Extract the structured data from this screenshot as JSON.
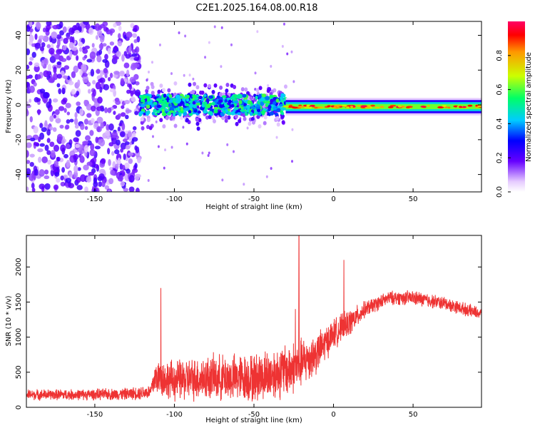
{
  "title": "C2E1.2025.164.08.00.R18",
  "chart_data": [
    {
      "type": "heatmap",
      "xlabel": "Height of straight line (km)",
      "ylabel": "Frequency (Hz)",
      "xlim": [
        -193,
        93
      ],
      "ylim": [
        -50,
        48
      ],
      "xticks": [
        -150,
        -100,
        -50,
        0,
        50
      ],
      "yticks": [
        -40,
        -20,
        0,
        20,
        40
      ],
      "colorbar": {
        "label": "Normalized spectral amplitude",
        "range": [
          0,
          1
        ],
        "ticks": [
          0.0,
          0.2,
          0.4,
          0.6,
          0.8
        ],
        "tick_labels": [
          "0.0",
          "0.2",
          "0.4",
          "0.6",
          "0.8"
        ]
      },
      "regions": [
        {
          "name": "broadband noise",
          "x": [
            -193,
            -122
          ],
          "freq_range": [
            -50,
            48
          ],
          "amplitude": 0.2
        },
        {
          "name": "scattered",
          "x": [
            -122,
            -30
          ],
          "freq_center": 0,
          "freq_halfwidth": 10,
          "amplitude": 0.35
        },
        {
          "name": "narrow line",
          "x": [
            -30,
            93
          ],
          "freq_center": -1,
          "freq_halfwidth": 3,
          "amplitude": 0.9
        }
      ]
    },
    {
      "type": "line",
      "xlabel": "Height of straight line (km)",
      "ylabel": "SNR (10 * v/v)",
      "xlim": [
        -193,
        93
      ],
      "ylim": [
        0,
        2450
      ],
      "xticks": [
        -150,
        -100,
        -50,
        0,
        50
      ],
      "yticks": [
        0,
        500,
        1000,
        1500,
        2000
      ],
      "series_color": "#ee3333",
      "envelope": {
        "x": [
          -193,
          -160,
          -130,
          -115,
          -112,
          -100,
          -80,
          -50,
          -30,
          -22,
          -10,
          0,
          10,
          20,
          35,
          50,
          70,
          93
        ],
        "mean": [
          180,
          180,
          190,
          220,
          430,
          380,
          420,
          420,
          520,
          600,
          780,
          1050,
          1200,
          1400,
          1560,
          1560,
          1480,
          1330
        ],
        "spread": [
          80,
          80,
          90,
          110,
          260,
          300,
          330,
          360,
          400,
          380,
          300,
          220,
          200,
          120,
          100,
          110,
          100,
          90
        ]
      },
      "spikes": [
        {
          "x": -108.5,
          "y": 1700
        },
        {
          "x": -21.7,
          "y": 2450
        },
        {
          "x": 6.5,
          "y": 2100
        },
        {
          "x": -24,
          "y": 1400
        }
      ]
    }
  ]
}
